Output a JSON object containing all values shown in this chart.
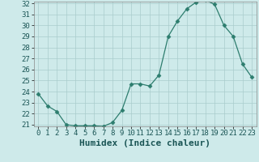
{
  "x": [
    0,
    1,
    2,
    3,
    4,
    5,
    6,
    7,
    8,
    9,
    10,
    11,
    12,
    13,
    14,
    15,
    16,
    17,
    18,
    19,
    20,
    21,
    22,
    23
  ],
  "y": [
    23.8,
    22.7,
    22.2,
    21.0,
    20.9,
    20.9,
    20.9,
    20.85,
    21.2,
    22.3,
    24.7,
    24.7,
    24.5,
    25.5,
    29.0,
    30.4,
    31.5,
    32.1,
    32.3,
    31.9,
    30.0,
    29.0,
    26.5,
    25.3
  ],
  "xlabel": "Humidex (Indice chaleur)",
  "ylim": [
    21,
    32
  ],
  "xlim": [
    -0.5,
    23.5
  ],
  "yticks": [
    21,
    22,
    23,
    24,
    25,
    26,
    27,
    28,
    29,
    30,
    31,
    32
  ],
  "xticks": [
    0,
    1,
    2,
    3,
    4,
    5,
    6,
    7,
    8,
    9,
    10,
    11,
    12,
    13,
    14,
    15,
    16,
    17,
    18,
    19,
    20,
    21,
    22,
    23
  ],
  "line_color": "#2d7d6e",
  "marker": "D",
  "marker_size": 2.5,
  "bg_color": "#ceeaea",
  "grid_color": "#aacccc",
  "xlabel_fontsize": 8,
  "tick_fontsize": 6.5
}
